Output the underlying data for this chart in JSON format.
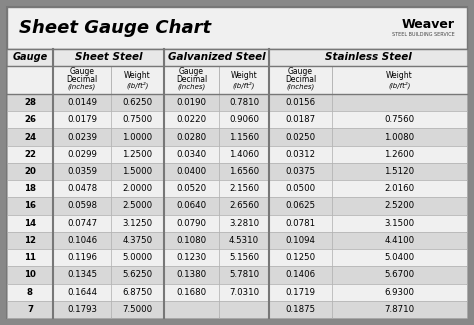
{
  "title": "Sheet Gauge Chart",
  "bg_outer": "#888888",
  "bg_title": "#ffffff",
  "bg_header1": "#e8e8e8",
  "bg_header2": "#f0f0f0",
  "bg_row_dark": "#d8d8d8",
  "bg_row_light": "#f0f0f0",
  "gauges": [
    "28",
    "26",
    "24",
    "22",
    "20",
    "18",
    "16",
    "14",
    "12",
    "11",
    "10",
    "8",
    "7"
  ],
  "sheet_steel_decimal": [
    "0.0149",
    "0.0179",
    "0.0239",
    "0.0299",
    "0.0359",
    "0.0478",
    "0.0598",
    "0.0747",
    "0.1046",
    "0.1196",
    "0.1345",
    "0.1644",
    "0.1793"
  ],
  "sheet_steel_weight": [
    "0.6250",
    "0.7500",
    "1.0000",
    "1.2500",
    "1.5000",
    "2.0000",
    "2.5000",
    "3.1250",
    "4.3750",
    "5.0000",
    "5.6250",
    "6.8750",
    "7.5000"
  ],
  "galv_decimal": [
    "0.0190",
    "0.0220",
    "0.0280",
    "0.0340",
    "0.0400",
    "0.0520",
    "0.0640",
    "0.0790",
    "0.1080",
    "0.1230",
    "0.1380",
    "0.1680",
    ""
  ],
  "galv_weight": [
    "0.7810",
    "0.9060",
    "1.1560",
    "1.4060",
    "1.6560",
    "2.1560",
    "2.6560",
    "3.2810",
    "4.5310",
    "5.1560",
    "5.7810",
    "7.0310",
    ""
  ],
  "stainless_decimal": [
    "0.0156",
    "0.0187",
    "0.0250",
    "0.0312",
    "0.0375",
    "0.0500",
    "0.0625",
    "0.0781",
    "0.1094",
    "0.1250",
    "0.1406",
    "0.1719",
    "0.1875"
  ],
  "stainless_weight": [
    "",
    "0.7560",
    "1.0080",
    "1.2600",
    "1.5120",
    "2.0160",
    "2.5200",
    "3.1500",
    "4.4100",
    "5.0400",
    "5.6700",
    "6.9300",
    "7.8710"
  ],
  "fig_w": 4.74,
  "fig_h": 3.25,
  "dpi": 100
}
